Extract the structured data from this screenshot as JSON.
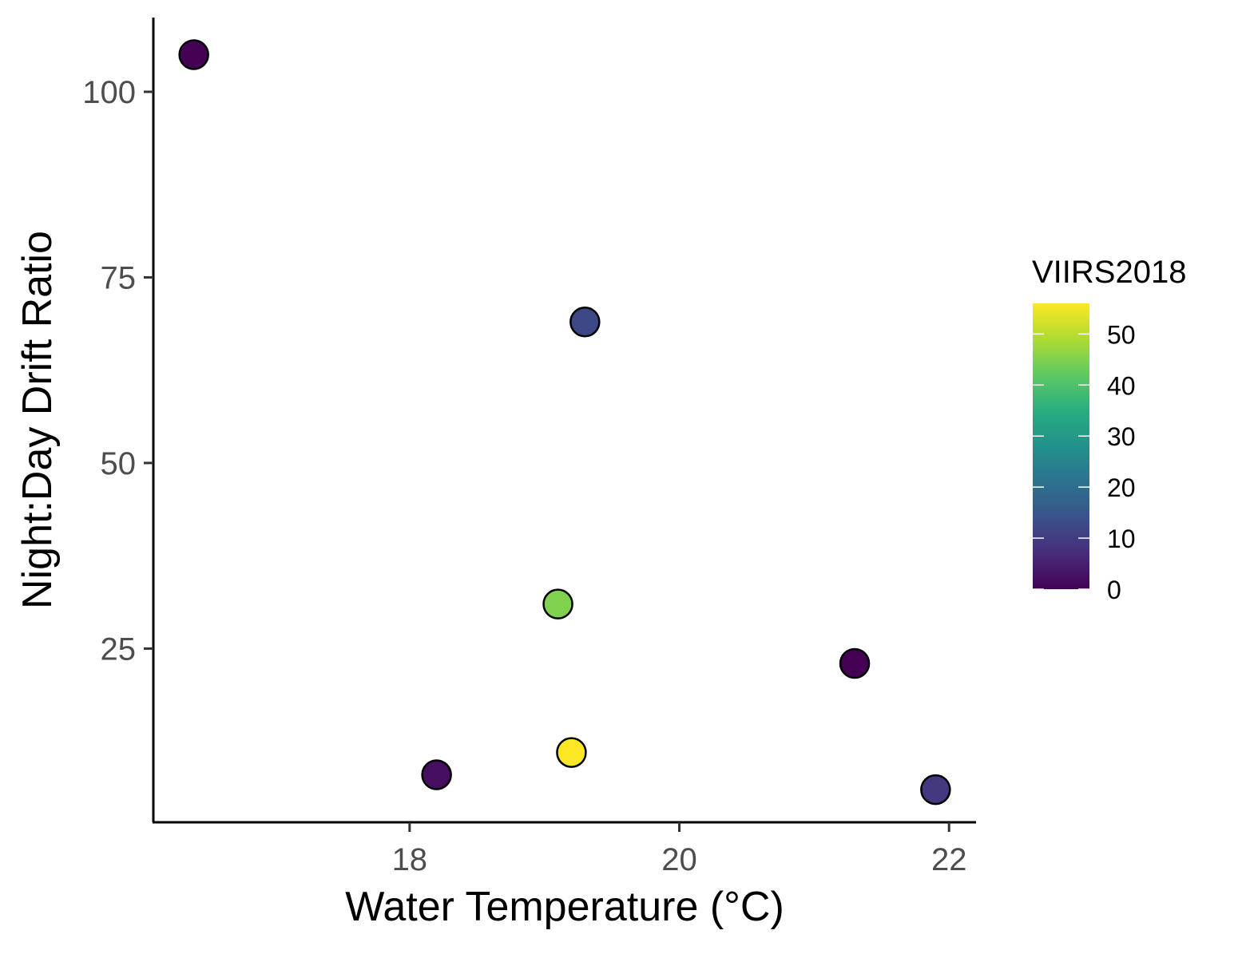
{
  "chart_data": {
    "type": "scatter",
    "xlabel": "Water Temperature (°C)",
    "ylabel": "Night:Day Drift Ratio",
    "xlim": [
      16.1,
      22.2
    ],
    "ylim": [
      1.6,
      110
    ],
    "x_ticks": [
      18,
      20,
      22
    ],
    "x_tick_labels": [
      "18",
      "20",
      "22"
    ],
    "y_ticks": [
      25,
      50,
      75,
      100
    ],
    "y_tick_labels": [
      "25",
      "50",
      "75",
      "100"
    ],
    "grid": false,
    "points": [
      {
        "x": 16.4,
        "y": 105,
        "color_value": 0
      },
      {
        "x": 19.3,
        "y": 69,
        "color_value": 12
      },
      {
        "x": 19.1,
        "y": 31,
        "color_value": 45
      },
      {
        "x": 21.3,
        "y": 23,
        "color_value": 0
      },
      {
        "x": 19.2,
        "y": 11,
        "color_value": 56
      },
      {
        "x": 18.2,
        "y": 8,
        "color_value": 2
      },
      {
        "x": 21.9,
        "y": 6,
        "color_value": 9
      }
    ],
    "colorbar": {
      "title": "VIIRS2018",
      "range": [
        0,
        56
      ],
      "ticks": [
        0,
        10,
        20,
        30,
        40,
        50
      ],
      "tick_labels": [
        "0",
        "10",
        "20",
        "30",
        "40",
        "50"
      ],
      "palette": "viridis",
      "palette_colors": [
        "#440154",
        "#472d7b",
        "#3b528b",
        "#2c728e",
        "#21918c",
        "#28ae80",
        "#5ec962",
        "#addc30",
        "#fde725"
      ],
      "placement": "right"
    }
  }
}
